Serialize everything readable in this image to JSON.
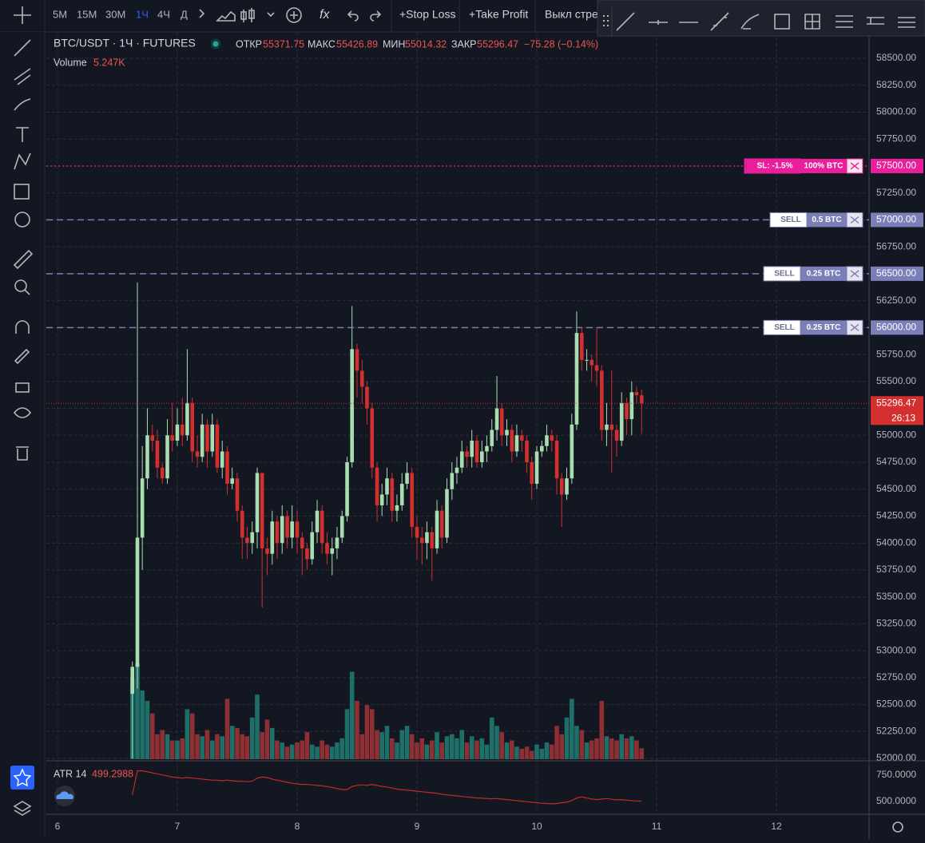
{
  "toolbar": {
    "intervals": [
      "5М",
      "15М",
      "30М",
      "1Ч",
      "4Ч",
      "Д"
    ],
    "active_interval_index": 3,
    "buttons": [
      "+Stop Loss",
      "+Take Profit",
      "Выкл стре"
    ]
  },
  "header": {
    "symbol": "BTC/USDT · 1Ч · FUTURES",
    "open_label": "ОТКР",
    "high_label": "МАКС",
    "low_label": "МИН",
    "close_label": "ЗАКР",
    "change": "−75.28 (−0.14%)",
    "volume_title": "Volume",
    "volume_readout": "5.247K",
    "atr_title": "ATR 14",
    "countdown": "26:13"
  },
  "orders": [
    {
      "side": "SL: -1.5%",
      "qty": "100% BTC",
      "price": {
        "value": 57500,
        "label": "57500.00"
      },
      "color": "#e91e9b"
    },
    {
      "side": "SELL",
      "qty": "0.5 BTC",
      "price": {
        "value": 57000,
        "label": "57000.00"
      },
      "color": "#7b7fb8"
    },
    {
      "side": "SELL",
      "qty": "0.25 BTC",
      "price": {
        "value": 56500,
        "label": "56500.00"
      },
      "color": "#7b7fb8"
    },
    {
      "side": "SELL",
      "qty": "0.25 BTC",
      "price": {
        "value": 56000,
        "label": "56000.00"
      },
      "color": "#7b7fb8"
    }
  ],
  "chart_data": {
    "type": "candlestick",
    "grid": true,
    "up_color": "#a9dcb0",
    "down_color": "#d32f2f",
    "volume_up_color": "#1f6f69",
    "volume_down_color": "#8e2f33",
    "atr_color": "#c62828",
    "xlim": [
      5.907,
      12.773
    ],
    "xticks": [
      6,
      7,
      8,
      9,
      10,
      11,
      12
    ],
    "ylim": [
      51978,
      58745
    ],
    "yticks": [
      {
        "value": 52000,
        "label": "52000.00"
      },
      {
        "value": 52250,
        "label": "52250.00"
      },
      {
        "value": 52500,
        "label": "52500.00"
      },
      {
        "value": 52750,
        "label": "52750.00"
      },
      {
        "value": 53000,
        "label": "53000.00"
      },
      {
        "value": 53250,
        "label": "53250.00"
      },
      {
        "value": 53500,
        "label": "53500.00"
      },
      {
        "value": 53750,
        "label": "53750.00"
      },
      {
        "value": 54000,
        "label": "54000.00"
      },
      {
        "value": 54250,
        "label": "54250.00"
      },
      {
        "value": 54500,
        "label": "54500.00"
      },
      {
        "value": 54750,
        "label": "54750.00"
      },
      {
        "value": 55000,
        "label": "55000.00"
      },
      {
        "value": 55250,
        "label": "55250.00"
      },
      {
        "value": 55500,
        "label": "55500.00"
      },
      {
        "value": 55750,
        "label": "55750.00"
      },
      {
        "value": 56000,
        "label": "56000.00"
      },
      {
        "value": 56250,
        "label": "56250.00"
      },
      {
        "value": 56500,
        "label": "56500.00"
      },
      {
        "value": 56750,
        "label": "56750.00"
      },
      {
        "value": 57000,
        "label": "57000.00"
      },
      {
        "value": 57250,
        "label": "57250.00"
      },
      {
        "value": 57500,
        "label": "57500.00"
      },
      {
        "value": 57750,
        "label": "57750.00"
      },
      {
        "value": 58000,
        "label": "58000.00"
      },
      {
        "value": 58250,
        "label": "58250.00"
      },
      {
        "value": 58500,
        "label": "58500.00"
      }
    ],
    "y2lim": [
      375,
      885
    ],
    "y2ticks": [
      {
        "value": 750,
        "label": "750.0000"
      },
      {
        "value": 500,
        "label": "500.0000"
      }
    ],
    "x": [
      6.625,
      6.667,
      6.708,
      6.75,
      6.792,
      6.833,
      6.875,
      6.917,
      6.958,
      7,
      7.042,
      7.083,
      7.125,
      7.167,
      7.208,
      7.25,
      7.292,
      7.333,
      7.375,
      7.417,
      7.458,
      7.5,
      7.542,
      7.583,
      7.625,
      7.667,
      7.708,
      7.75,
      7.792,
      7.833,
      7.875,
      7.917,
      7.958,
      8,
      8.042,
      8.083,
      8.125,
      8.167,
      8.208,
      8.25,
      8.292,
      8.333,
      8.375,
      8.417,
      8.458,
      8.5,
      8.542,
      8.583,
      8.625,
      8.667,
      8.708,
      8.75,
      8.792,
      8.833,
      8.875,
      8.917,
      8.958,
      9,
      9.042,
      9.083,
      9.125,
      9.167,
      9.208,
      9.25,
      9.292,
      9.333,
      9.375,
      9.417,
      9.458,
      9.5,
      9.542,
      9.583,
      9.625,
      9.667,
      9.708,
      9.75,
      9.792,
      9.833,
      9.875,
      9.917,
      9.958,
      10,
      10.042,
      10.083,
      10.125,
      10.167,
      10.208,
      10.25,
      10.292,
      10.333,
      10.375,
      10.417,
      10.458,
      10.5,
      10.542,
      10.583,
      10.625,
      10.667,
      10.708,
      10.75,
      10.792,
      10.833,
      10.875
    ],
    "open": [
      52600,
      52850,
      54050,
      54600,
      55000,
      54950,
      54700,
      54600,
      55000,
      54950,
      55100,
      55000,
      55300,
      54850,
      54800,
      55100,
      54850,
      55100,
      54700,
      54850,
      54550,
      54600,
      54300,
      54050,
      54000,
      54100,
      54650,
      53950,
      53900,
      54200,
      54000,
      54250,
      54050,
      54200,
      54050,
      53950,
      53850,
      54100,
      54300,
      54000,
      53900,
      53950,
      54050,
      54250,
      54750,
      55800,
      55600,
      55450,
      55250,
      54700,
      54350,
      54450,
      54600,
      54300,
      54350,
      54550,
      54650,
      54150,
      54050,
      54000,
      54100,
      53950,
      54300,
      54050,
      54500,
      54650,
      54700,
      54850,
      54800,
      54950,
      54750,
      54850,
      54900,
      55050,
      55250,
      55000,
      55050,
      54850,
      55000,
      54950,
      54750,
      54550,
      54850,
      54900,
      55000,
      54950,
      54600,
      54450,
      54600,
      55100,
      55950,
      55700,
      55700,
      55650,
      55600,
      55050,
      55100,
      55050,
      54950,
      55300,
      55150,
      55400,
      55371.75
    ],
    "high": [
      52900,
      56420,
      54900,
      55250,
      55100,
      55050,
      54750,
      55150,
      55300,
      55250,
      55350,
      55800,
      55350,
      55000,
      55200,
      55150,
      55200,
      55150,
      54950,
      54900,
      54700,
      54650,
      54350,
      54150,
      54200,
      54700,
      54650,
      54050,
      54300,
      54250,
      54350,
      54300,
      54350,
      54300,
      54100,
      54000,
      54200,
      54400,
      54350,
      54100,
      54050,
      54150,
      54300,
      54800,
      56200,
      55850,
      55700,
      55500,
      55300,
      54750,
      54550,
      54700,
      54650,
      54450,
      54650,
      54750,
      54700,
      54250,
      54150,
      54200,
      54150,
      54400,
      54350,
      54600,
      54750,
      54800,
      54950,
      54900,
      55050,
      55000,
      54950,
      55000,
      55150,
      55550,
      55300,
      55150,
      55100,
      55100,
      55050,
      55000,
      54800,
      54900,
      54950,
      55100,
      55050,
      55000,
      54650,
      54700,
      55200,
      56150,
      56000,
      55800,
      55750,
      56000,
      55650,
      55300,
      55600,
      55100,
      55400,
      55350,
      55500,
      55450,
      55426.89
    ],
    "low": [
      52000,
      52650,
      53750,
      54500,
      54850,
      54600,
      54550,
      54550,
      54850,
      54900,
      54900,
      54950,
      54750,
      54700,
      54750,
      54700,
      54800,
      54650,
      54600,
      54450,
      54500,
      54200,
      53850,
      53850,
      53900,
      53950,
      53400,
      53700,
      53800,
      53850,
      53900,
      53950,
      53950,
      53900,
      53700,
      53750,
      53800,
      54000,
      53900,
      53800,
      53700,
      53850,
      54000,
      54200,
      54700,
      55350,
      55300,
      55100,
      54600,
      54200,
      54250,
      54350,
      54200,
      54200,
      54300,
      54500,
      54050,
      53850,
      53800,
      53850,
      53650,
      53900,
      53950,
      54000,
      54400,
      54550,
      54650,
      54700,
      54700,
      54700,
      54700,
      54750,
      54850,
      54950,
      54900,
      54900,
      54750,
      54800,
      54850,
      54650,
      54400,
      54500,
      54800,
      54850,
      54850,
      54450,
      54150,
      54400,
      54550,
      55050,
      55600,
      55600,
      55500,
      55450,
      54950,
      54900,
      54650,
      54800,
      54900,
      55000,
      55000,
      55300,
      55014.32
    ],
    "close": [
      52850,
      54050,
      54600,
      55000,
      54950,
      54700,
      54600,
      55000,
      54950,
      55100,
      55000,
      55300,
      54850,
      54800,
      55100,
      54850,
      55100,
      54700,
      54850,
      54550,
      54600,
      54300,
      54050,
      54000,
      54100,
      54650,
      53950,
      53900,
      54200,
      54000,
      54250,
      54050,
      54200,
      54050,
      53950,
      53850,
      54100,
      54300,
      54000,
      53900,
      53950,
      54050,
      54250,
      54750,
      55800,
      55600,
      55450,
      55250,
      54700,
      54350,
      54450,
      54600,
      54300,
      54350,
      54550,
      54650,
      54150,
      54050,
      54000,
      54100,
      53950,
      54300,
      54050,
      54500,
      54650,
      54700,
      54850,
      54800,
      54950,
      54750,
      54850,
      54900,
      55050,
      55250,
      55000,
      55050,
      54850,
      55000,
      54950,
      54750,
      54550,
      54850,
      54900,
      55000,
      54950,
      54600,
      54450,
      54600,
      55100,
      55950,
      55700,
      55700,
      55650,
      55600,
      55050,
      55100,
      55050,
      54950,
      55300,
      55150,
      55400,
      55371.75,
      55296.47
    ],
    "volume": [
      39000,
      46000,
      33000,
      28000,
      22000,
      12000,
      14000,
      12000,
      9000,
      9000,
      10000,
      24000,
      22000,
      12000,
      11000,
      14000,
      9000,
      12000,
      11000,
      29000,
      16000,
      15000,
      12000,
      11000,
      20000,
      31000,
      13000,
      19000,
      15000,
      9000,
      8000,
      6000,
      7000,
      8000,
      9000,
      13000,
      7000,
      6000,
      9000,
      7000,
      6000,
      8000,
      10000,
      24000,
      42000,
      28000,
      12000,
      26000,
      24000,
      14000,
      13000,
      16000,
      10000,
      8000,
      14000,
      16000,
      12000,
      8000,
      10000,
      7000,
      9000,
      13000,
      8000,
      11000,
      12000,
      10000,
      14000,
      8000,
      11000,
      9000,
      10000,
      7000,
      20000,
      16000,
      13000,
      8000,
      9000,
      6000,
      5000,
      6000,
      4000,
      7000,
      5000,
      8000,
      7000,
      16000,
      12000,
      20000,
      29000,
      16000,
      14000,
      8000,
      9000,
      10000,
      28000,
      11000,
      10000,
      9000,
      12000,
      10000,
      11000,
      9000,
      5247
    ],
    "atr": [
      560,
      790,
      790,
      780,
      770,
      760,
      750,
      740,
      730,
      725,
      720,
      725,
      720,
      715,
      710,
      705,
      700,
      700,
      695,
      700,
      695,
      690,
      690,
      685,
      690,
      720,
      730,
      725,
      710,
      700,
      690,
      680,
      670,
      665,
      660,
      660,
      655,
      650,
      645,
      640,
      630,
      620,
      610,
      610,
      640,
      650,
      655,
      650,
      660,
      650,
      640,
      635,
      625,
      615,
      610,
      605,
      600,
      595,
      590,
      585,
      580,
      575,
      565,
      560,
      555,
      550,
      545,
      540,
      535,
      530,
      528,
      525,
      522,
      525,
      520,
      515,
      510,
      505,
      500,
      495,
      490,
      485,
      480,
      478,
      475,
      478,
      485,
      490,
      505,
      530,
      540,
      530,
      520,
      515,
      520,
      525,
      518,
      512,
      515,
      510,
      505,
      502,
      499.2988
    ]
  }
}
